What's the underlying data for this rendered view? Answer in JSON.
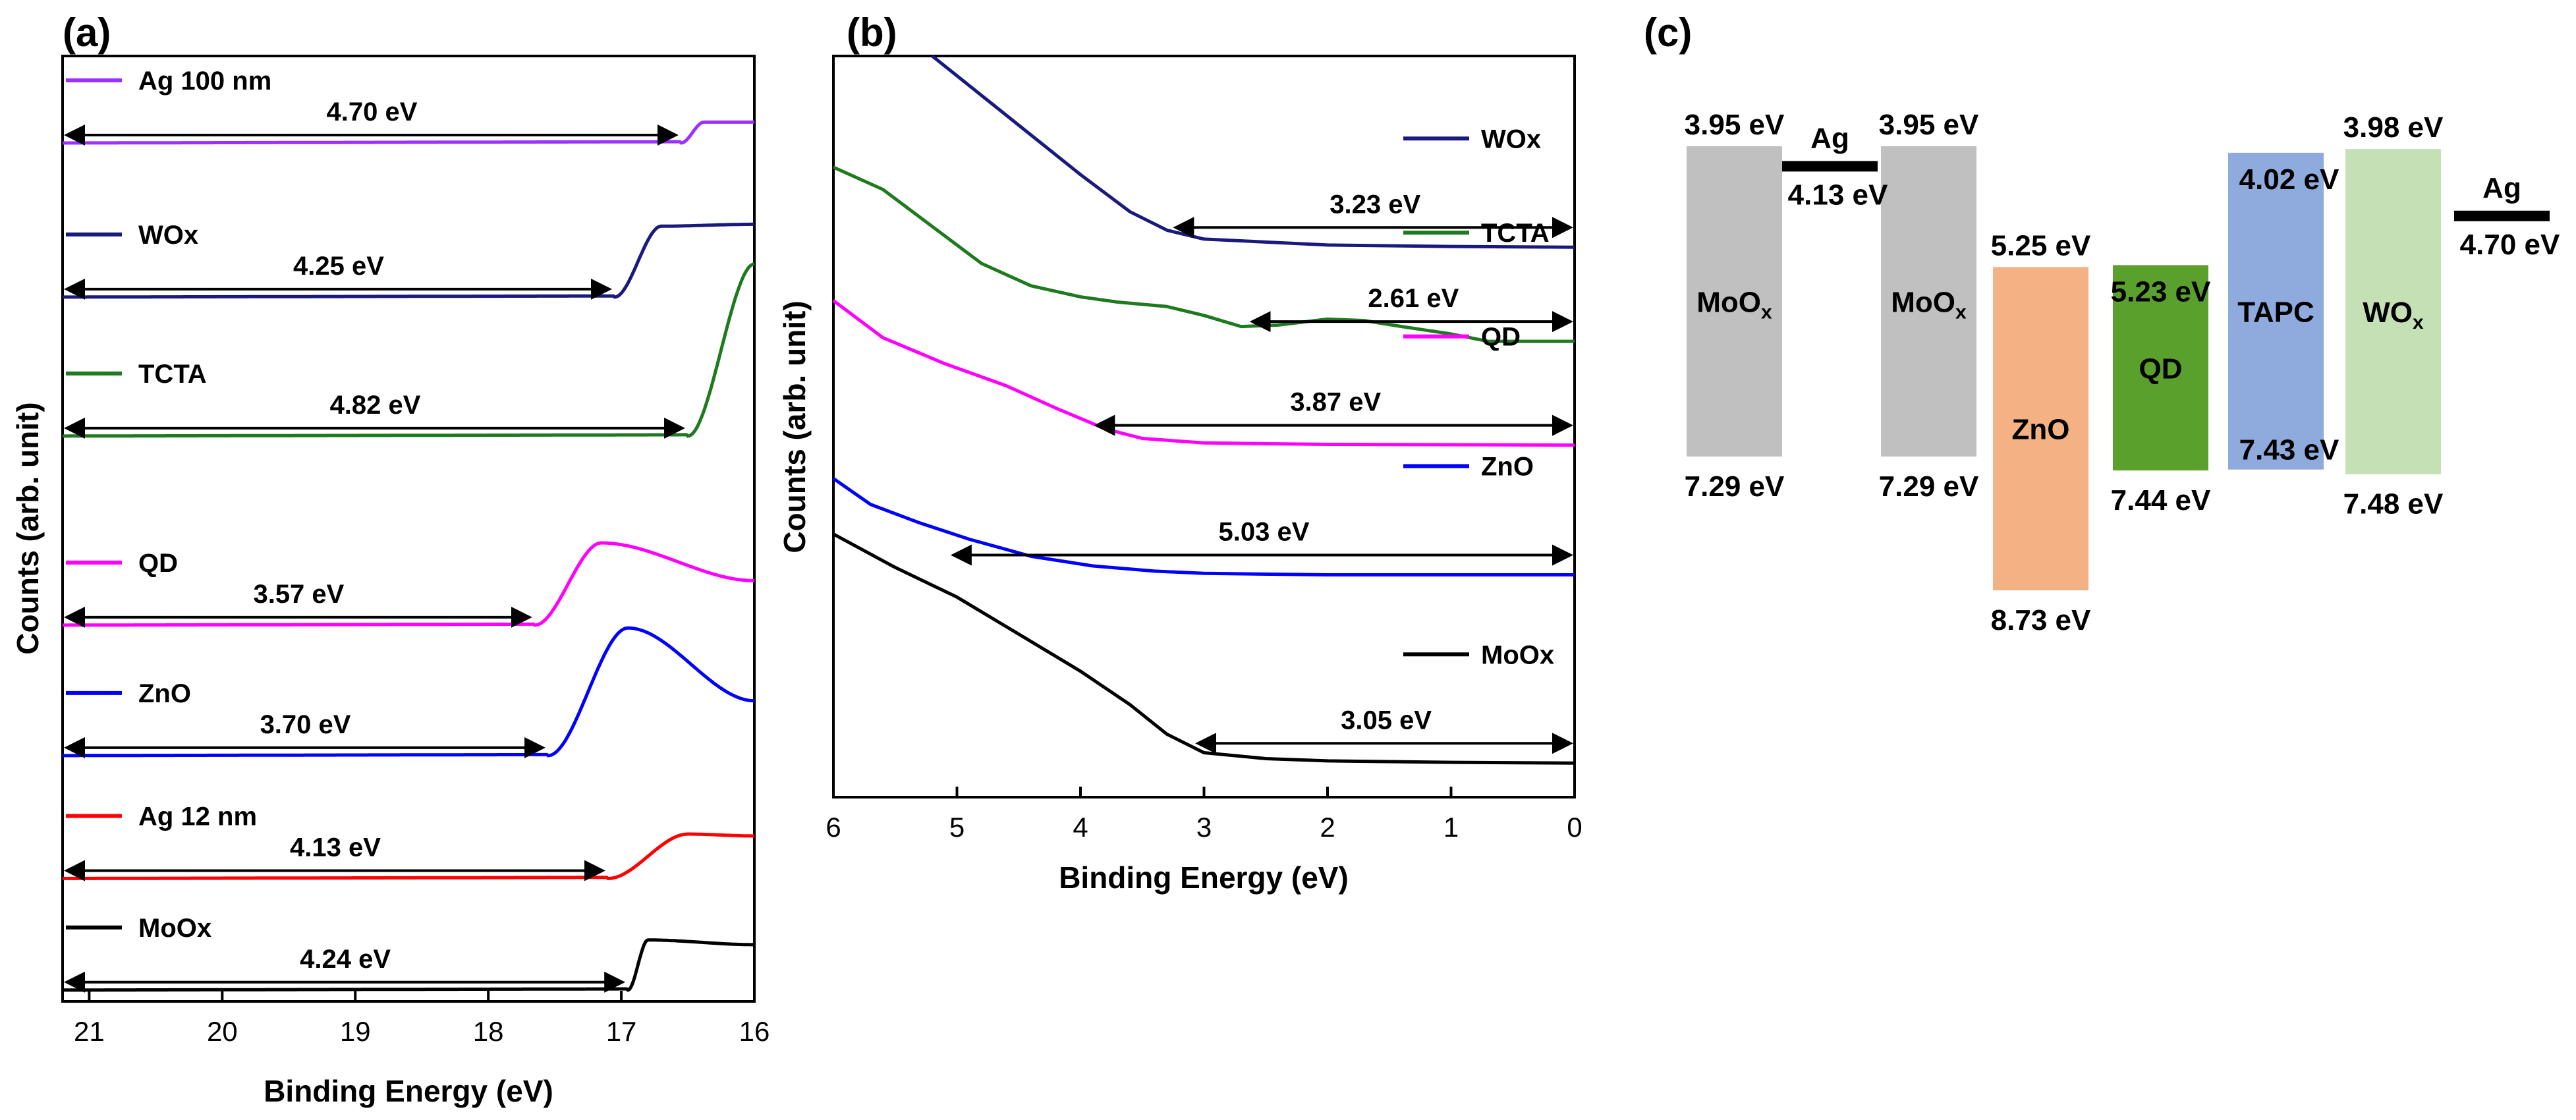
{
  "chart_data": [
    {
      "type": "line",
      "panel": "(a)",
      "title": "",
      "xlabel": "Binding Energy (eV)",
      "ylabel": "Counts (arb. unit)",
      "xlim": [
        21.2,
        16
      ],
      "x_reversed": true,
      "xticks": [
        21,
        20,
        19,
        18,
        17,
        16
      ],
      "y_units": "arbitrary (stacked, offset)",
      "series": [
        {
          "name": "Ag 100 nm",
          "color": "#9b30ff",
          "baseline": 0.908,
          "onset": 16.55,
          "peak_x": 16.38,
          "peak_y": 0.93,
          "end_y": 0.93,
          "cutoff_label": "4.70 eV"
        },
        {
          "name": "WOx",
          "color": "#1a1a7e",
          "baseline": 0.745,
          "onset": 17.05,
          "peak_x": 16.7,
          "peak_y": 0.82,
          "end_y": 0.822,
          "cutoff_label": "4.25 eV"
        },
        {
          "name": "TCTA",
          "color": "#1e7a1e",
          "baseline": 0.598,
          "onset": 16.5,
          "peak_x": 16.0,
          "peak_y": 0.78,
          "end_y": 0.78,
          "cutoff_label": "4.82 eV"
        },
        {
          "name": "QD",
          "color": "#ff00ff",
          "baseline": 0.398,
          "onset": 17.65,
          "peak_x": 17.15,
          "peak_y": 0.485,
          "end_y": 0.445,
          "cutoff_label": "3.57 eV"
        },
        {
          "name": "ZnO",
          "color": "#0000ff",
          "baseline": 0.26,
          "onset": 17.55,
          "peak_x": 16.95,
          "peak_y": 0.395,
          "end_y": 0.318,
          "cutoff_label": "3.70 eV"
        },
        {
          "name": "Ag 12 nm",
          "color": "#ff0000",
          "baseline": 0.13,
          "onset": 17.1,
          "peak_x": 16.5,
          "peak_y": 0.177,
          "end_y": 0.175,
          "cutoff_label": "4.13 eV"
        },
        {
          "name": "MoOx",
          "color": "#000000",
          "baseline": 0.012,
          "onset": 16.95,
          "peak_x": 16.8,
          "peak_y": 0.065,
          "end_y": 0.06,
          "cutoff_label": "4.24 eV"
        }
      ]
    },
    {
      "type": "line",
      "panel": "(b)",
      "title": "",
      "xlabel": "Binding Energy (eV)",
      "ylabel": "Counts (arb. unit)",
      "xlim": [
        6,
        0
      ],
      "x_reversed": true,
      "xticks": [
        6,
        5,
        4,
        3,
        2,
        1,
        0
      ],
      "y_units": "arbitrary (stacked, offset)",
      "series": [
        {
          "name": "WOx",
          "color": "#1a1a7e",
          "label": "3.23 eV",
          "arrow_from": 3.23,
          "points": [
            [
              5.2,
              1.0
            ],
            [
              4.6,
              0.92
            ],
            [
              4.0,
              0.84
            ],
            [
              3.6,
              0.79
            ],
            [
              3.3,
              0.765
            ],
            [
              3.0,
              0.753
            ],
            [
              2.0,
              0.745
            ],
            [
              1.0,
              0.743
            ],
            [
              0,
              0.742
            ]
          ]
        },
        {
          "name": "TCTA",
          "color": "#1e7a1e",
          "label": "2.61 eV",
          "arrow_from": 2.61,
          "points": [
            [
              6.0,
              0.85
            ],
            [
              5.6,
              0.82
            ],
            [
              5.2,
              0.77
            ],
            [
              4.8,
              0.72
            ],
            [
              4.4,
              0.69
            ],
            [
              4.0,
              0.675
            ],
            [
              3.7,
              0.668
            ],
            [
              3.3,
              0.662
            ],
            [
              3.0,
              0.65
            ],
            [
              2.7,
              0.635
            ],
            [
              2.4,
              0.637
            ],
            [
              2.0,
              0.645
            ],
            [
              1.7,
              0.643
            ],
            [
              1.4,
              0.635
            ],
            [
              1.0,
              0.625
            ],
            [
              0.7,
              0.615
            ],
            [
              0,
              0.615
            ]
          ]
        },
        {
          "name": "QD",
          "color": "#ff00ff",
          "label": "3.87 eV",
          "arrow_from": 3.87,
          "points": [
            [
              6.0,
              0.67
            ],
            [
              5.6,
              0.62
            ],
            [
              5.1,
              0.585
            ],
            [
              4.6,
              0.555
            ],
            [
              4.2,
              0.525
            ],
            [
              3.8,
              0.497
            ],
            [
              3.5,
              0.484
            ],
            [
              3.0,
              0.478
            ],
            [
              2.0,
              0.476
            ],
            [
              0,
              0.475
            ]
          ]
        },
        {
          "name": "ZnO",
          "color": "#0000ff",
          "label": "5.03 eV",
          "arrow_from": 5.03,
          "points": [
            [
              6.0,
              0.43
            ],
            [
              5.7,
              0.395
            ],
            [
              5.3,
              0.37
            ],
            [
              4.9,
              0.348
            ],
            [
              4.4,
              0.325
            ],
            [
              3.9,
              0.312
            ],
            [
              3.4,
              0.305
            ],
            [
              3.0,
              0.302
            ],
            [
              2.0,
              0.3
            ],
            [
              0,
              0.3
            ]
          ]
        },
        {
          "name": "MoOx",
          "color": "#000000",
          "label": "3.05 eV",
          "arrow_from": 3.05,
          "points": [
            [
              6.0,
              0.355
            ],
            [
              5.5,
              0.31
            ],
            [
              5.0,
              0.27
            ],
            [
              4.5,
              0.22
            ],
            [
              4.0,
              0.17
            ],
            [
              3.6,
              0.125
            ],
            [
              3.3,
              0.085
            ],
            [
              3.0,
              0.06
            ],
            [
              2.5,
              0.052
            ],
            [
              2.0,
              0.049
            ],
            [
              1.0,
              0.047
            ],
            [
              0,
              0.046
            ]
          ]
        }
      ]
    },
    {
      "type": "diagram",
      "panel": "(c)",
      "y_units": "eV below vacuum level",
      "y_range": [
        3.5,
        9.0
      ],
      "layers": [
        {
          "name": "MoO",
          "subscript": "x",
          "color": "#c0c0c0",
          "top_ev": 3.95,
          "bottom_ev": 7.29,
          "top_label": "3.95 eV",
          "bottom_label": "7.29 eV"
        },
        {
          "name": "MoO",
          "subscript": "x",
          "color": "#c0c0c0",
          "top_ev": 3.95,
          "bottom_ev": 7.29,
          "top_label": "3.95 eV",
          "bottom_label": "7.29 eV"
        },
        {
          "name": "ZnO",
          "subscript": "",
          "color": "#f4b183",
          "top_ev": 5.25,
          "bottom_ev": 8.73,
          "top_label": "5.25 eV",
          "bottom_label": "8.73 eV"
        },
        {
          "name": "QD",
          "subscript": "",
          "color": "#5aa02c",
          "top_ev": 5.23,
          "bottom_ev": 7.44,
          "top_label": "5.23 eV",
          "bottom_label": "7.44 eV"
        },
        {
          "name": "TAPC",
          "subscript": "",
          "color": "#8faadc",
          "top_ev": 4.02,
          "bottom_ev": 7.43,
          "top_label": "4.02 eV",
          "bottom_label": "7.43 eV"
        },
        {
          "name": "WO",
          "subscript": "x",
          "color": "#c5e0b4",
          "top_ev": 3.98,
          "bottom_ev": 7.48,
          "top_label": "3.98 eV",
          "bottom_label": "7.48 eV"
        }
      ],
      "metals": [
        {
          "name": "Ag",
          "work_function_ev": 4.13,
          "label": "4.13 eV"
        },
        {
          "name": "Ag",
          "work_function_ev": 4.7,
          "label": "4.70 eV"
        }
      ]
    }
  ]
}
